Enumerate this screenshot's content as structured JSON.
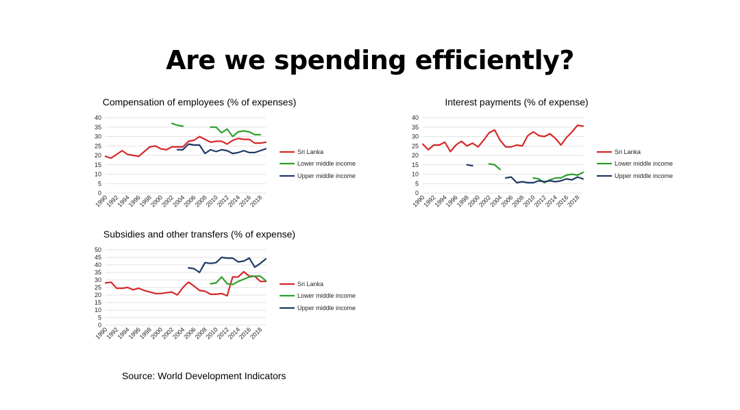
{
  "slide": {
    "title": "Are we spending efficiently?",
    "source": "Source: World Development Indicators"
  },
  "colors": {
    "sri_lanka": "#d62728",
    "lower_middle": "#2ca02c",
    "upper_middle": "#1f3864"
  },
  "chart_data": [
    {
      "type": "line",
      "title": "Compensation of employees (% of expenses)",
      "xlabel": "",
      "ylabel": "",
      "ylim": [
        0,
        40
      ],
      "yticks": [
        0,
        5,
        10,
        15,
        20,
        25,
        30,
        35,
        40
      ],
      "x": [
        1990,
        1991,
        1992,
        1993,
        1994,
        1995,
        1996,
        1997,
        1998,
        1999,
        2000,
        2001,
        2002,
        2003,
        2004,
        2005,
        2006,
        2007,
        2008,
        2009,
        2010,
        2011,
        2012,
        2013,
        2014,
        2015,
        2016,
        2017,
        2018,
        2019
      ],
      "xtick_labels": [
        "1990",
        "1992",
        "1994",
        "1996",
        "1998",
        "2000",
        "2002",
        "2004",
        "2006",
        "2008",
        "2010",
        "2012",
        "2014",
        "2016",
        "2018"
      ],
      "legend_position": "right",
      "series": [
        {
          "name": "Sri Lanka",
          "color_key": "sri_lanka",
          "values": [
            19.5,
            18.5,
            20.5,
            22.5,
            20.5,
            20,
            19.5,
            22,
            24.5,
            25,
            23.5,
            23,
            24.5,
            24.5,
            24.5,
            27.5,
            28,
            30,
            28.5,
            27,
            27.5,
            27.5,
            26,
            28,
            29,
            28.5,
            28.5,
            26.5,
            26.5,
            27
          ]
        },
        {
          "name": "Lower middle income",
          "color_key": "lower_middle",
          "values": [
            null,
            null,
            null,
            null,
            null,
            null,
            null,
            null,
            null,
            null,
            null,
            null,
            37,
            36,
            35.5,
            null,
            null,
            null,
            null,
            35,
            35,
            32,
            34,
            30,
            32.5,
            33,
            32.5,
            31,
            31,
            null
          ]
        },
        {
          "name": "Upper middle income",
          "color_key": "upper_middle",
          "values": [
            null,
            null,
            null,
            null,
            null,
            null,
            null,
            null,
            null,
            null,
            null,
            null,
            null,
            23,
            23,
            26,
            25.5,
            25.5,
            21,
            23,
            22,
            23,
            22.5,
            21,
            21.5,
            22.5,
            21.5,
            21.5,
            22.5,
            23.5
          ]
        }
      ]
    },
    {
      "type": "line",
      "title": "Interest payments (% of expense)",
      "xlabel": "",
      "ylabel": "",
      "ylim": [
        0,
        40
      ],
      "yticks": [
        0,
        5,
        10,
        15,
        20,
        25,
        30,
        35,
        40
      ],
      "x": [
        1990,
        1991,
        1992,
        1993,
        1994,
        1995,
        1996,
        1997,
        1998,
        1999,
        2000,
        2001,
        2002,
        2003,
        2004,
        2005,
        2006,
        2007,
        2008,
        2009,
        2010,
        2011,
        2012,
        2013,
        2014,
        2015,
        2016,
        2017,
        2018,
        2019
      ],
      "xtick_labels": [
        "1990",
        "1992",
        "1994",
        "1996",
        "1998",
        "2000",
        "2002",
        "2004",
        "2006",
        "2008",
        "2010",
        "2012",
        "2014",
        "2016",
        "2018"
      ],
      "legend_position": "right",
      "series": [
        {
          "name": "Sri Lanka",
          "color_key": "sri_lanka",
          "values": [
            26,
            23,
            25.5,
            25.5,
            27,
            22,
            25.5,
            27.5,
            25,
            26.5,
            24.5,
            28,
            32,
            33.5,
            28,
            24.5,
            24.5,
            25.5,
            25,
            30.5,
            32.5,
            30.5,
            30,
            31.5,
            29,
            25.5,
            29.5,
            32.5,
            36,
            35.5
          ]
        },
        {
          "name": "Lower middle income",
          "color_key": "lower_middle",
          "values": [
            null,
            null,
            null,
            null,
            null,
            null,
            null,
            null,
            null,
            null,
            null,
            null,
            15.5,
            15,
            12.5,
            null,
            null,
            null,
            null,
            null,
            8,
            7.5,
            5.5,
            7,
            8,
            8,
            9.5,
            10,
            9.5,
            11
          ]
        },
        {
          "name": "Upper middle income",
          "color_key": "upper_middle",
          "values": [
            null,
            null,
            null,
            null,
            null,
            null,
            null,
            null,
            15,
            14.5,
            null,
            null,
            null,
            null,
            null,
            8,
            8.5,
            5.5,
            6,
            5.5,
            5.5,
            6.5,
            6,
            6.5,
            6,
            6.5,
            7.5,
            7,
            8.5,
            7.5
          ]
        }
      ]
    },
    {
      "type": "line",
      "title": "Subsidies and other transfers (% of expense)",
      "xlabel": "",
      "ylabel": "",
      "ylim": [
        0,
        50
      ],
      "yticks": [
        0,
        5,
        10,
        15,
        20,
        25,
        30,
        35,
        40,
        45,
        50
      ],
      "x": [
        1990,
        1991,
        1992,
        1993,
        1994,
        1995,
        1996,
        1997,
        1998,
        1999,
        2000,
        2001,
        2002,
        2003,
        2004,
        2005,
        2006,
        2007,
        2008,
        2009,
        2010,
        2011,
        2012,
        2013,
        2014,
        2015,
        2016,
        2017,
        2018,
        2019
      ],
      "xtick_labels": [
        "1990",
        "1992",
        "1994",
        "1996",
        "1998",
        "2000",
        "2002",
        "2004",
        "2006",
        "2008",
        "2010",
        "2012",
        "2014",
        "2016",
        "2018"
      ],
      "legend_position": "right",
      "series": [
        {
          "name": "Sri Lanka",
          "color_key": "sri_lanka",
          "values": [
            28,
            28.5,
            24.5,
            24.5,
            25,
            23.5,
            24.5,
            23,
            22,
            21,
            21,
            21.5,
            22,
            20,
            25,
            28.5,
            26,
            23,
            22.5,
            20.5,
            20.5,
            21,
            19.5,
            32,
            32,
            35.5,
            32.5,
            32.5,
            29,
            29
          ]
        },
        {
          "name": "Lower middle income",
          "color_key": "lower_middle",
          "values": [
            null,
            null,
            null,
            null,
            null,
            null,
            null,
            null,
            null,
            null,
            null,
            null,
            null,
            null,
            null,
            null,
            null,
            null,
            null,
            27.5,
            28,
            32,
            27.5,
            27,
            29,
            30.5,
            32,
            32.5,
            32.5,
            29.5
          ]
        },
        {
          "name": "Upper middle income",
          "color_key": "upper_middle",
          "values": [
            null,
            null,
            null,
            null,
            null,
            null,
            null,
            null,
            null,
            null,
            null,
            null,
            null,
            null,
            null,
            38,
            37.5,
            35,
            41.5,
            41,
            41.5,
            45,
            44.5,
            44.5,
            42,
            42.5,
            44.5,
            38.5,
            41,
            44
          ]
        }
      ]
    }
  ]
}
